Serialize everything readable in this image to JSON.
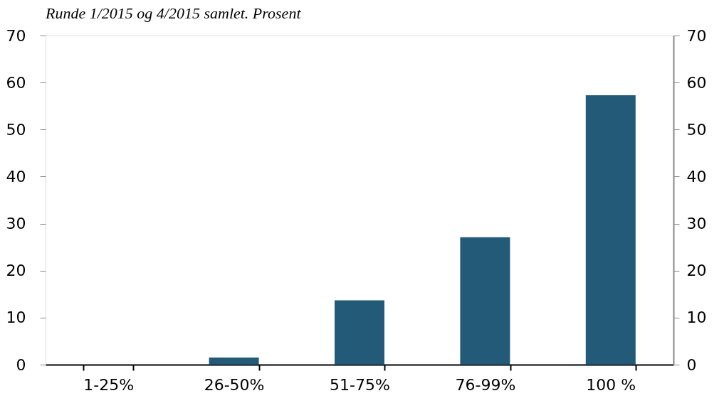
{
  "chart_data": {
    "type": "bar",
    "subtitle": "Runde 1/2015 og 4/2015 samlet. Prosent",
    "categories": [
      "1-25%",
      "26-50%",
      "51-75%",
      "76-99%",
      "100 %"
    ],
    "values": [
      0,
      1.5,
      13.7,
      27.1,
      57.3
    ],
    "color": "#235a78",
    "ylim": [
      0,
      70
    ],
    "yticks": [
      0,
      10,
      20,
      30,
      40,
      50,
      60,
      70
    ],
    "y2lim": [
      0,
      70
    ],
    "y2ticks": [
      0,
      10,
      20,
      30,
      40,
      50,
      60,
      70
    ],
    "grid": false
  }
}
